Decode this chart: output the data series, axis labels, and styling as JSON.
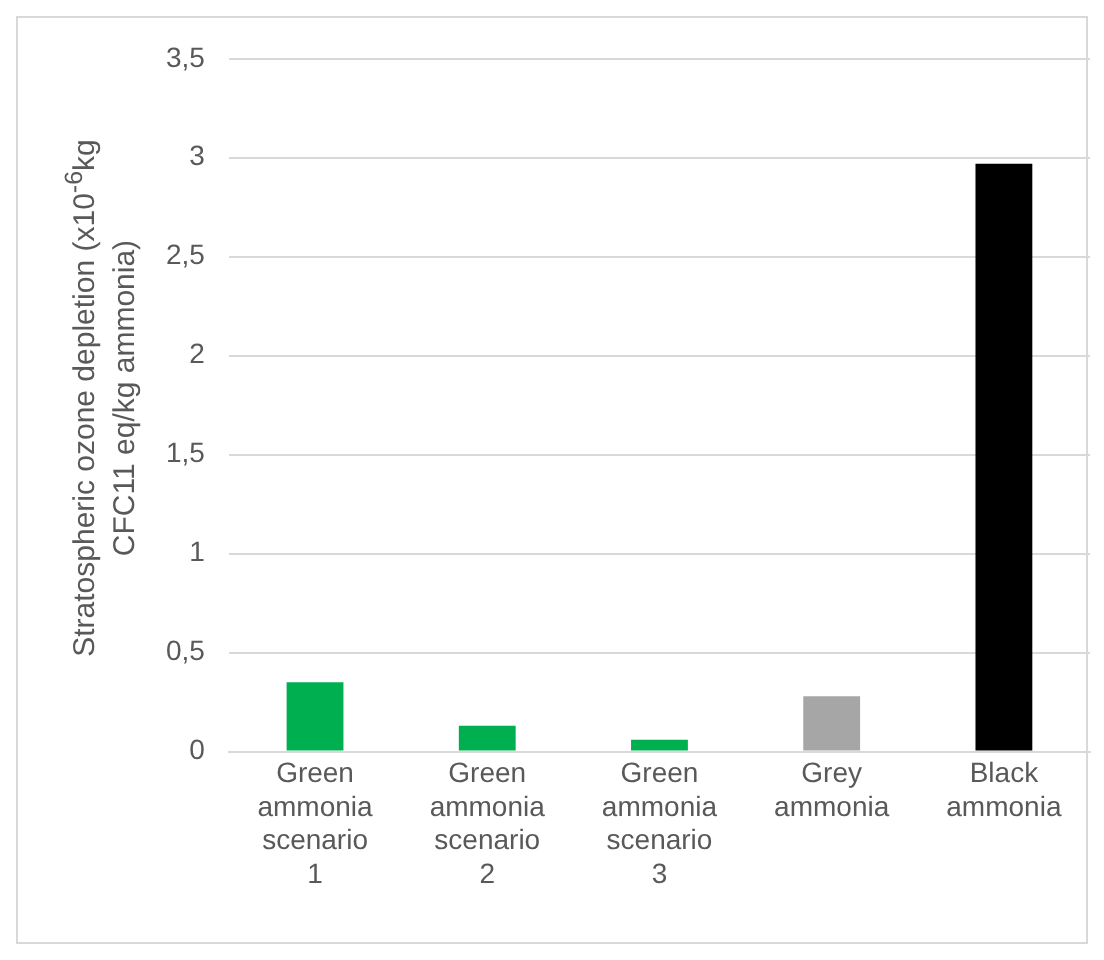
{
  "chart_data": {
    "type": "bar",
    "ylabel": "Stratospheric ozone depletion (x10$^{-6}$kg CFC11 eq/kg ammonia)",
    "categories": [
      "Green ammonia scenario 1",
      "Green ammonia scenario 2",
      "Green ammonia scenario 3",
      "Grey ammonia",
      "Black ammonia"
    ],
    "values": [
      0.35,
      0.13,
      0.06,
      0.28,
      2.97
    ],
    "colors": [
      "#00b050",
      "#00b050",
      "#00b050",
      "#a6a6a6",
      "#000000"
    ],
    "ylim": [
      0,
      3.5
    ],
    "yticks": [
      {
        "value": 0,
        "label": "0"
      },
      {
        "value": 0.5,
        "label": "0,5"
      },
      {
        "value": 1,
        "label": "1"
      },
      {
        "value": 1.5,
        "label": "1,5"
      },
      {
        "value": 2,
        "label": "2"
      },
      {
        "value": 2.5,
        "label": "2,5"
      },
      {
        "value": 3,
        "label": "3"
      },
      {
        "value": 3.5,
        "label": "3,5"
      }
    ],
    "grid": "y",
    "legend": false
  }
}
